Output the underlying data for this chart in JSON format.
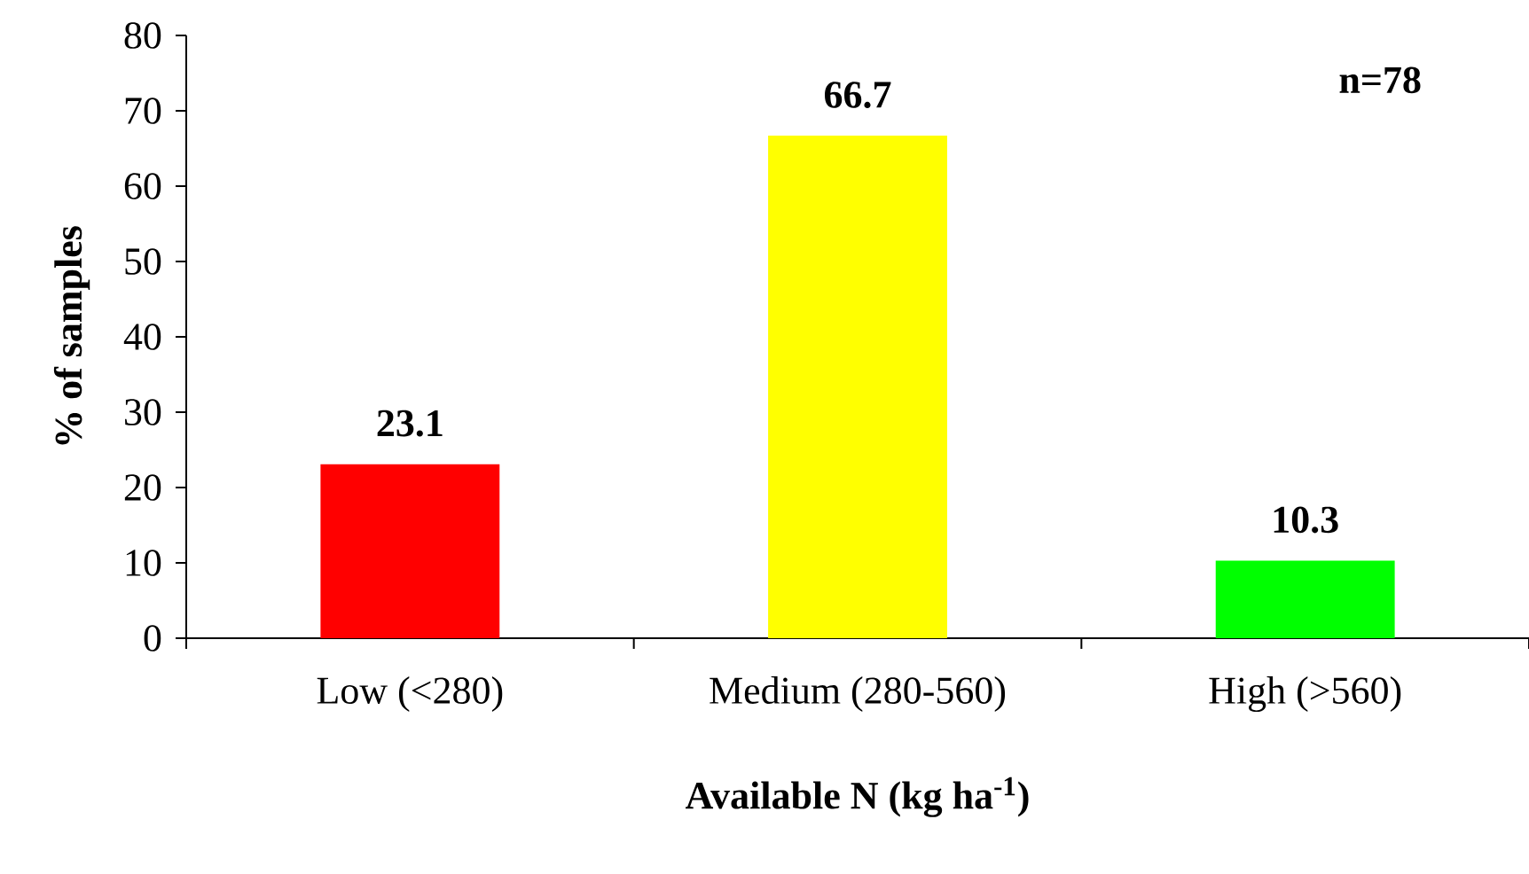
{
  "chart_data": {
    "type": "bar",
    "xlabel": "Available N (kg ha$^{-1}$)",
    "ylabel": "% of samples",
    "categories": [
      "Low (<280)",
      "Medium (280-560)",
      "High (>560)"
    ],
    "values": [
      23.1,
      66.7,
      10.3
    ],
    "colors": [
      "#ff0000",
      "#ffff00",
      "#00ff00"
    ],
    "ylim": [
      0,
      80
    ],
    "yticks": [
      0,
      10,
      20,
      30,
      40,
      50,
      60,
      70,
      80
    ],
    "data_labels": true,
    "grid": false,
    "annotations": [
      "n=78"
    ]
  }
}
